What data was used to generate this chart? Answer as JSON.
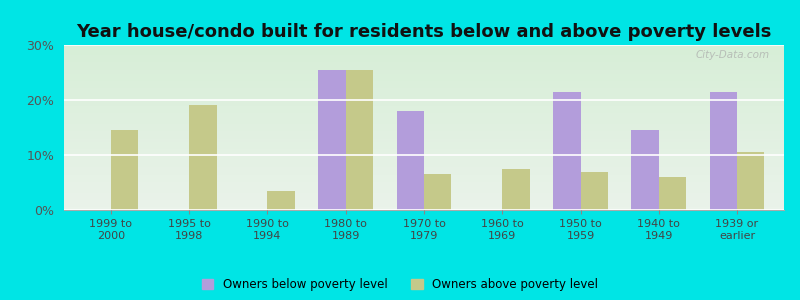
{
  "title": "Year house/condo built for residents below and above poverty levels",
  "categories": [
    "1999 to\n2000",
    "1995 to\n1998",
    "1990 to\n1994",
    "1980 to\n1989",
    "1970 to\n1979",
    "1960 to\n1969",
    "1950 to\n1959",
    "1940 to\n1949",
    "1939 or\nearlier"
  ],
  "below_poverty": [
    0,
    0,
    0,
    25.5,
    18.0,
    0,
    21.5,
    14.5,
    21.5
  ],
  "above_poverty": [
    14.5,
    19.0,
    3.5,
    25.5,
    6.5,
    7.5,
    7.0,
    6.0,
    10.5
  ],
  "below_color": "#b39ddb",
  "above_color": "#c5c98a",
  "background_color": "#00e5e5",
  "ylim": [
    0,
    30
  ],
  "yticks": [
    0,
    10,
    20,
    30
  ],
  "ytick_labels": [
    "0%",
    "10%",
    "20%",
    "30%"
  ],
  "bar_width": 0.35,
  "title_fontsize": 13,
  "legend_below_label": "Owners below poverty level",
  "legend_above_label": "Owners above poverty level",
  "watermark": "City-Data.com"
}
